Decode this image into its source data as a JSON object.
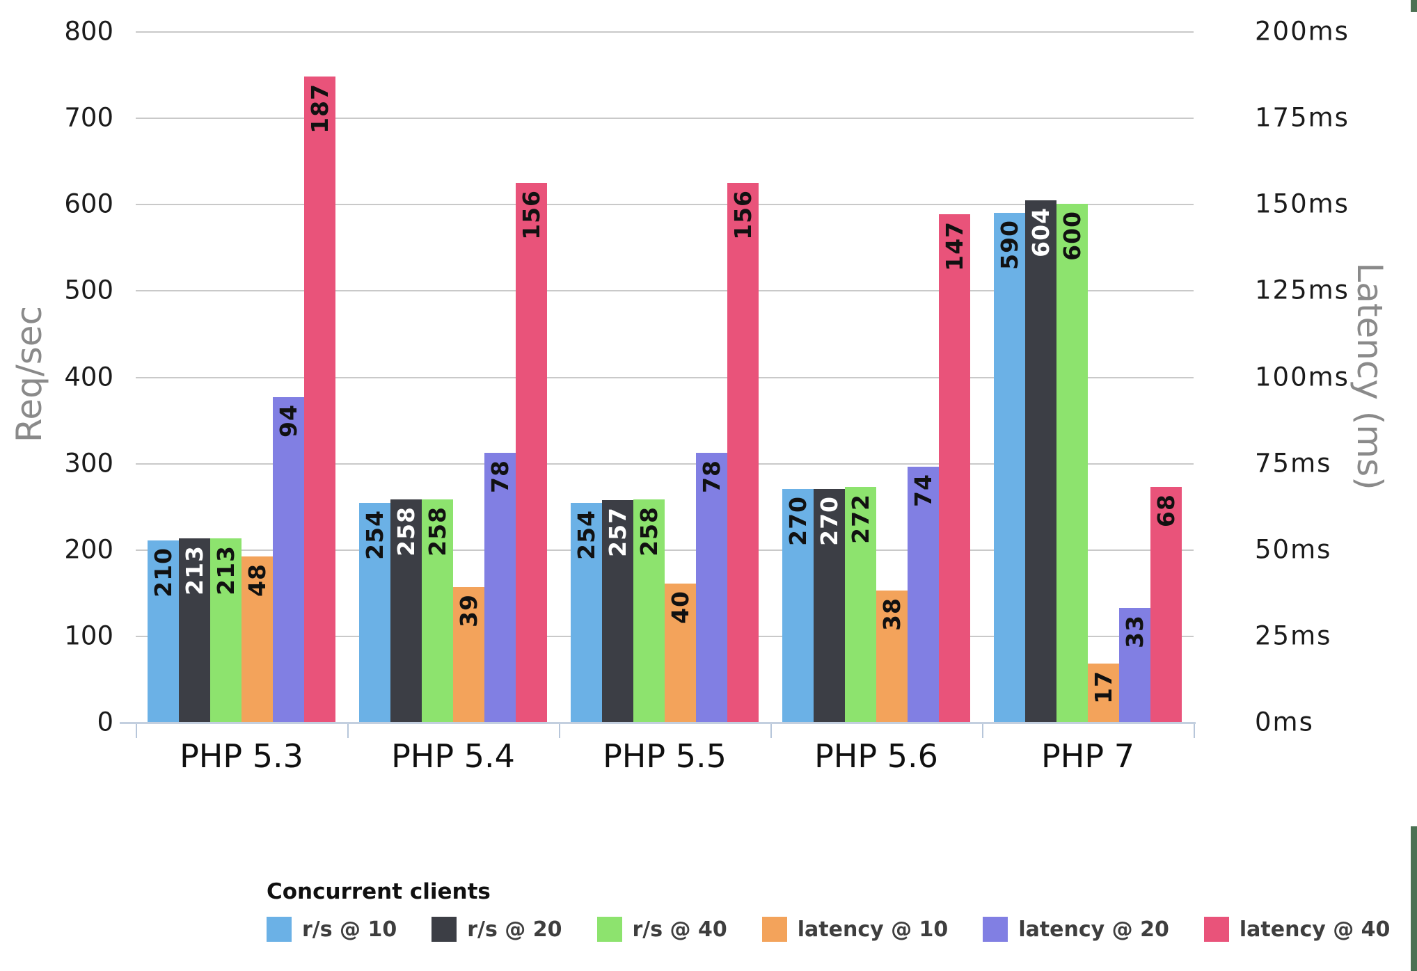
{
  "page": {
    "background": "#ffffff",
    "edge_accent_color": "#4b7153"
  },
  "chart_data": {
    "type": "bar",
    "title": "",
    "categories": [
      "PHP 5.3",
      "PHP 5.4",
      "PHP 5.5",
      "PHP 5.6",
      "PHP 7"
    ],
    "series": [
      {
        "name": "r/s @ 10",
        "axis": "left",
        "color": "#6bb1e6",
        "label_color": "#111111",
        "values": [
          210,
          254,
          254,
          270,
          590
        ]
      },
      {
        "name": "r/s @ 20",
        "axis": "left",
        "color": "#3c3e45",
        "label_color": "#ffffff",
        "values": [
          213,
          258,
          257,
          270,
          604
        ]
      },
      {
        "name": "r/s @ 40",
        "axis": "left",
        "color": "#8de36e",
        "label_color": "#111111",
        "values": [
          213,
          258,
          258,
          272,
          600
        ]
      },
      {
        "name": "latency @ 10",
        "axis": "right",
        "color": "#f3a35b",
        "label_color": "#111111",
        "values": [
          48,
          39,
          40,
          38,
          17
        ]
      },
      {
        "name": "latency @ 20",
        "axis": "right",
        "color": "#817fe3",
        "label_color": "#111111",
        "values": [
          94,
          78,
          78,
          74,
          33
        ]
      },
      {
        "name": "latency @ 40",
        "axis": "right",
        "color": "#e9537a",
        "label_color": "#111111",
        "values": [
          187,
          156,
          156,
          147,
          68
        ]
      }
    ],
    "left_axis": {
      "label": "Req/sec",
      "min": 0,
      "max": 800,
      "ticks": [
        "800",
        "700",
        "600",
        "500",
        "400",
        "300",
        "200",
        "100",
        "0"
      ]
    },
    "right_axis": {
      "label": "Latency (ms)",
      "min": 0,
      "max": 200,
      "ticks": [
        "200ms",
        "175ms",
        "150ms",
        "125ms",
        "100ms",
        "75ms",
        "50ms",
        "25ms",
        "0ms"
      ]
    },
    "legend": {
      "title": "Concurrent clients",
      "position": "bottom"
    },
    "grid": true,
    "gridline_color": "#c9c9c9",
    "axis_line_color": "#c3cfdf"
  }
}
